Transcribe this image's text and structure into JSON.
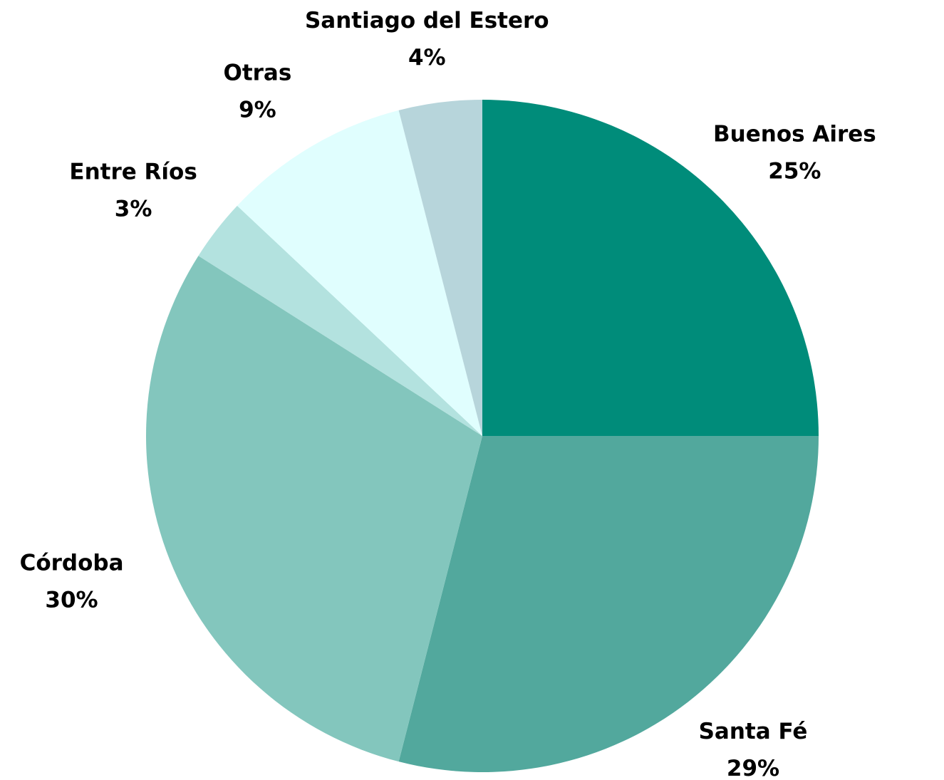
{
  "chart_data": {
    "type": "pie",
    "categories": [
      "Buenos Aires",
      "Santa Fé",
      "Córdoba",
      "Entre Ríos",
      "Otras",
      "Santiago del Estero"
    ],
    "values": [
      25,
      29,
      30,
      3,
      9,
      4
    ],
    "value_labels": [
      "25%",
      "29%",
      "30%",
      "3%",
      "9%",
      "4%"
    ],
    "colors": [
      "#008c7a",
      "#52a89d",
      "#83c6bd",
      "#b3e2df",
      "#e0fefe",
      "#b7d5db"
    ]
  }
}
